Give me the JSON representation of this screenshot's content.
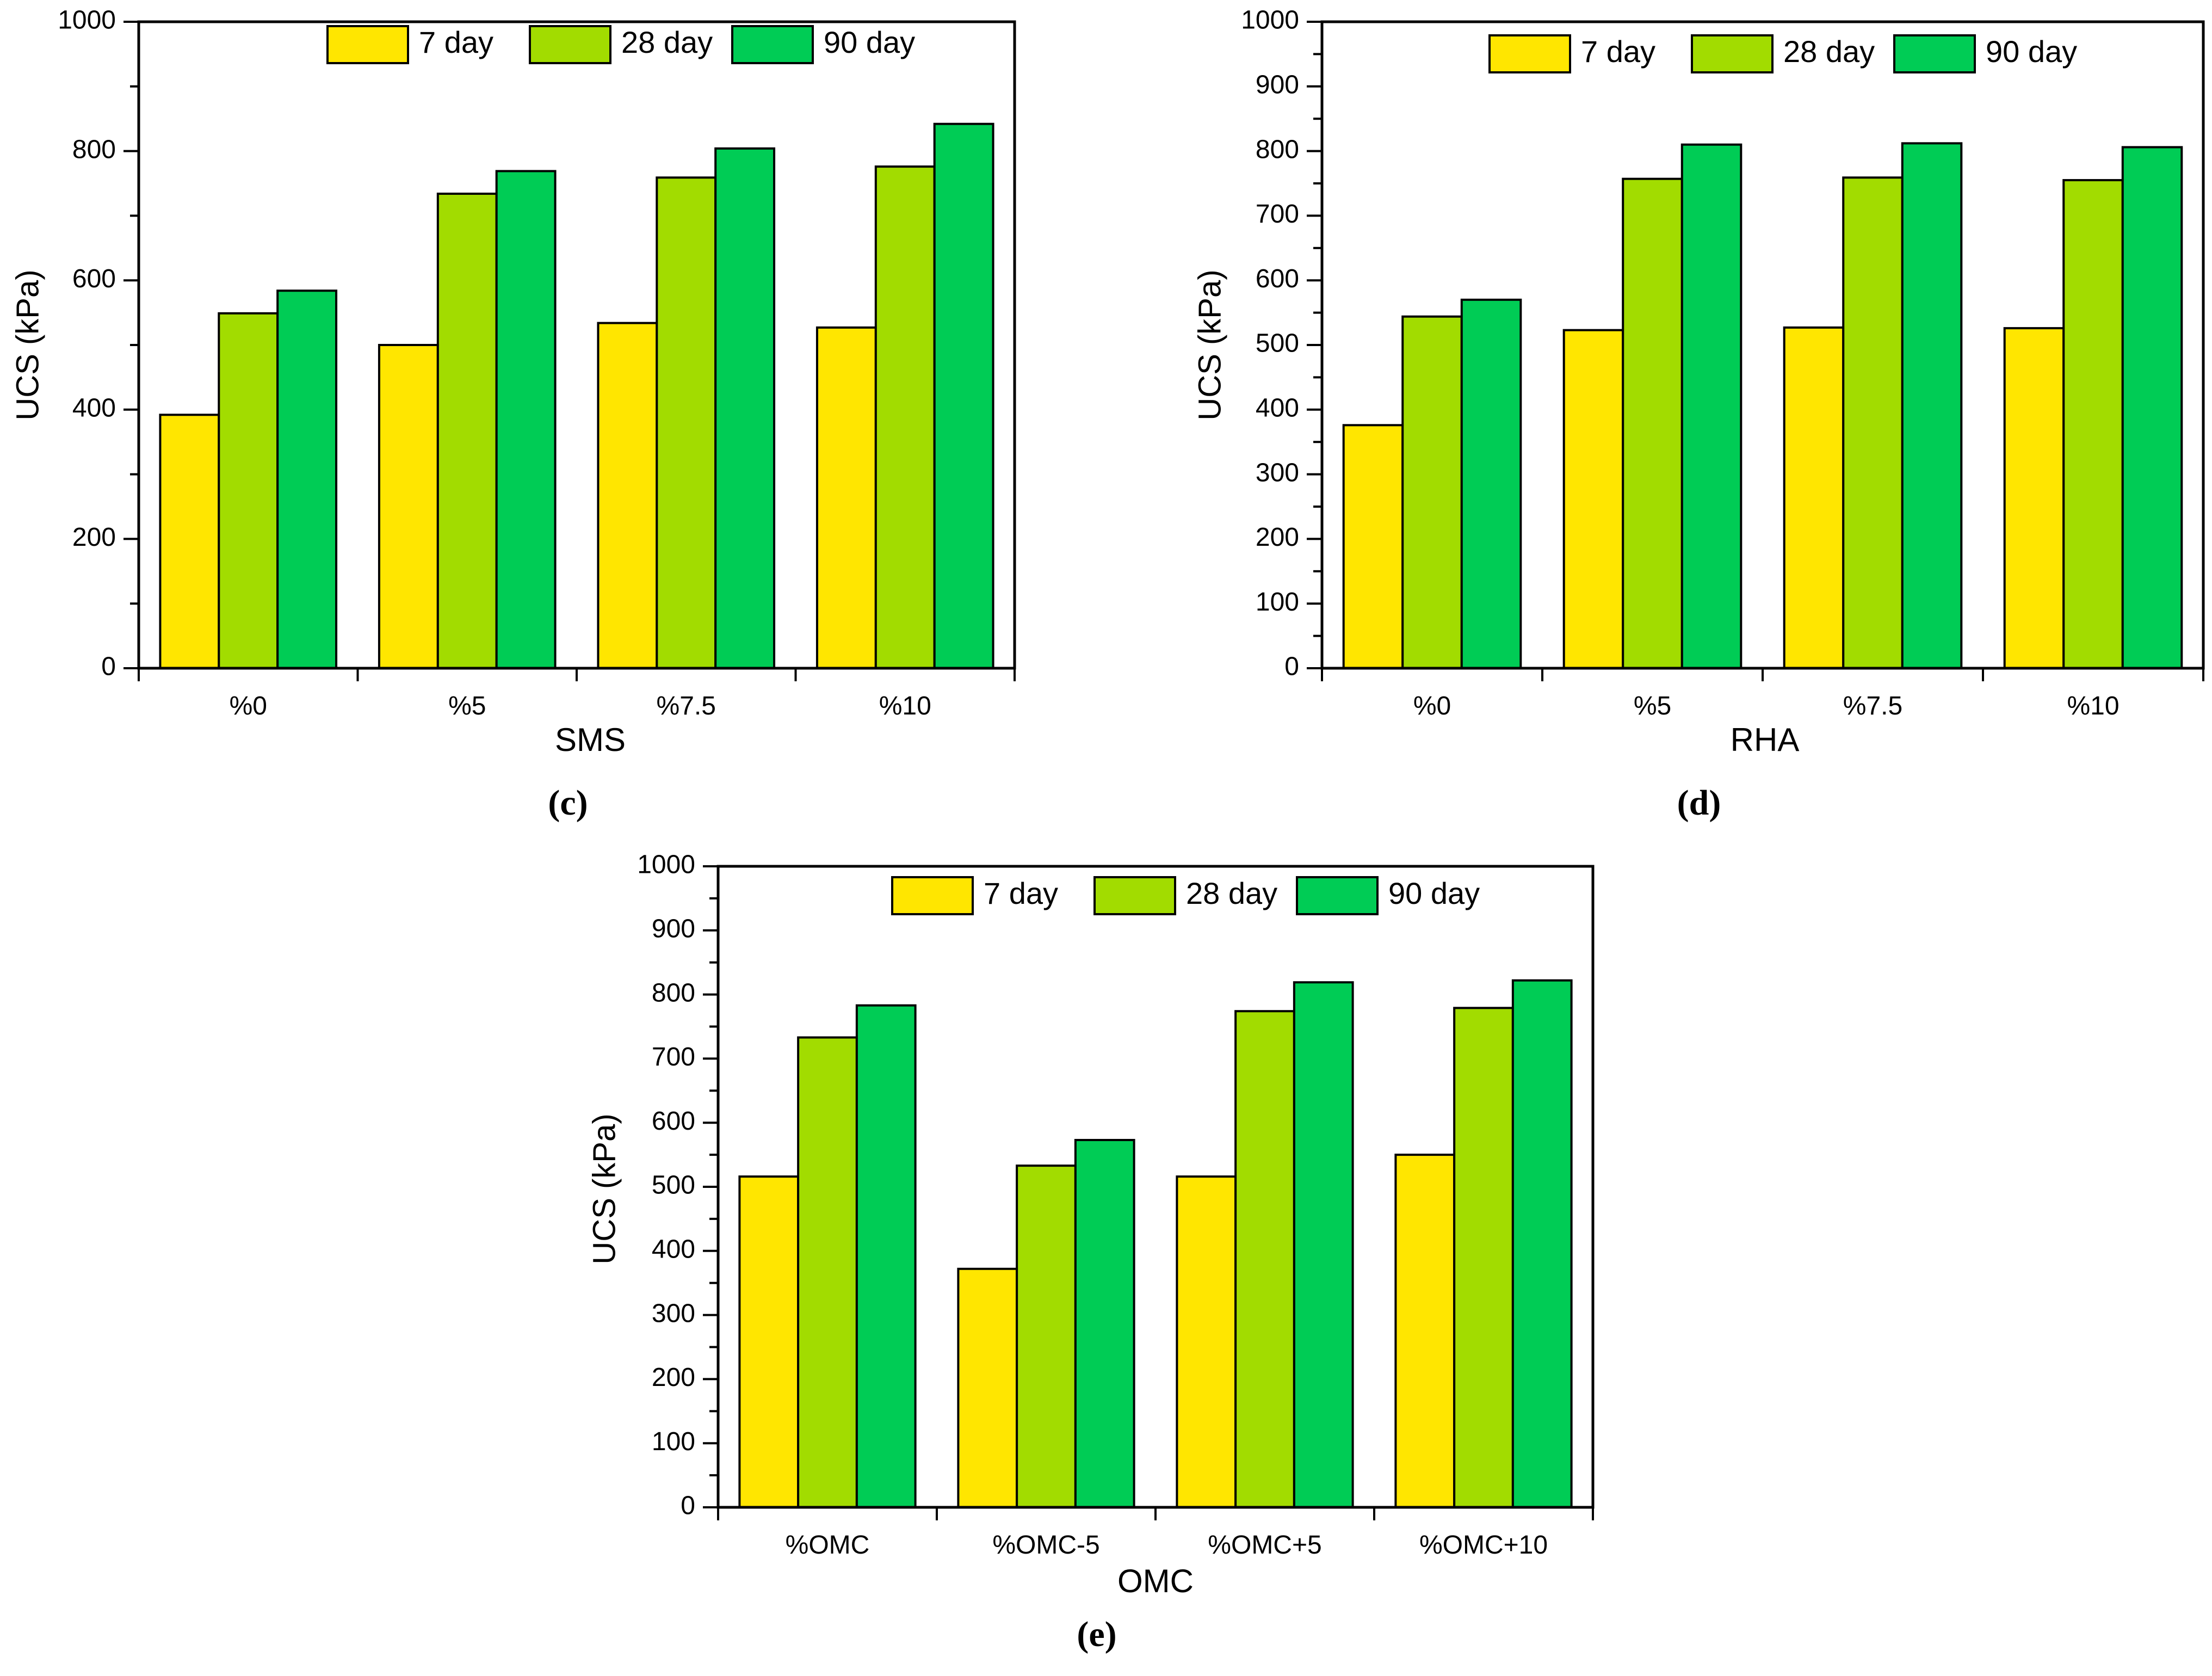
{
  "colors": {
    "day7": "#FFE600",
    "day28": "#A2DC00",
    "day90": "#00CC55",
    "stroke": "#000000"
  },
  "legend": [
    "7 day",
    "28 day",
    "90 day"
  ],
  "chart_data": [
    {
      "panel": "c",
      "panel_label": "(c)",
      "type": "bar",
      "xlabel": "SMS",
      "ylabel": "UCS (kPa)",
      "categories": [
        "%0",
        "%5",
        "%7.5",
        "%10"
      ],
      "ylim": [
        0,
        1000
      ],
      "ytick_labels": [
        "0",
        "200",
        "400",
        "600",
        "800",
        "1000"
      ],
      "series": [
        {
          "name": "7 day",
          "values": [
            392,
            500,
            534,
            527
          ]
        },
        {
          "name": "28 day",
          "values": [
            549,
            734,
            759,
            776
          ]
        },
        {
          "name": "90 day",
          "values": [
            584,
            769,
            804,
            842
          ]
        }
      ],
      "legend_position": "top-center",
      "grid": false
    },
    {
      "panel": "d",
      "panel_label": "(d)",
      "type": "bar",
      "xlabel": "RHA",
      "ylabel": "UCS (kPa)",
      "categories": [
        "%0",
        "%5",
        "%7.5",
        "%10"
      ],
      "ylim": [
        0,
        1000
      ],
      "ytick_labels": [
        "0",
        "100",
        "200",
        "300",
        "400",
        "500",
        "600",
        "700",
        "800",
        "900",
        "1000"
      ],
      "series": [
        {
          "name": "7 day",
          "values": [
            376,
            523,
            527,
            526
          ]
        },
        {
          "name": "28 day",
          "values": [
            544,
            757,
            759,
            755
          ]
        },
        {
          "name": "90 day",
          "values": [
            570,
            810,
            812,
            806
          ]
        }
      ],
      "legend_position": "top-center",
      "grid": false
    },
    {
      "panel": "e",
      "panel_label": "(e)",
      "type": "bar",
      "xlabel": "OMC",
      "ylabel": "UCS (kPa)",
      "categories": [
        "%OMC",
        "%OMC-5",
        "%OMC+5",
        "%OMC+10"
      ],
      "ylim": [
        0,
        1000
      ],
      "ytick_labels": [
        "0",
        "100",
        "200",
        "300",
        "400",
        "500",
        "600",
        "700",
        "800",
        "900",
        "1000"
      ],
      "series": [
        {
          "name": "7 day",
          "values": [
            516,
            372,
            516,
            550
          ]
        },
        {
          "name": "28 day",
          "values": [
            733,
            533,
            774,
            779
          ]
        },
        {
          "name": "90 day",
          "values": [
            783,
            573,
            819,
            822
          ]
        }
      ],
      "legend_position": "top-center",
      "grid": false
    }
  ]
}
